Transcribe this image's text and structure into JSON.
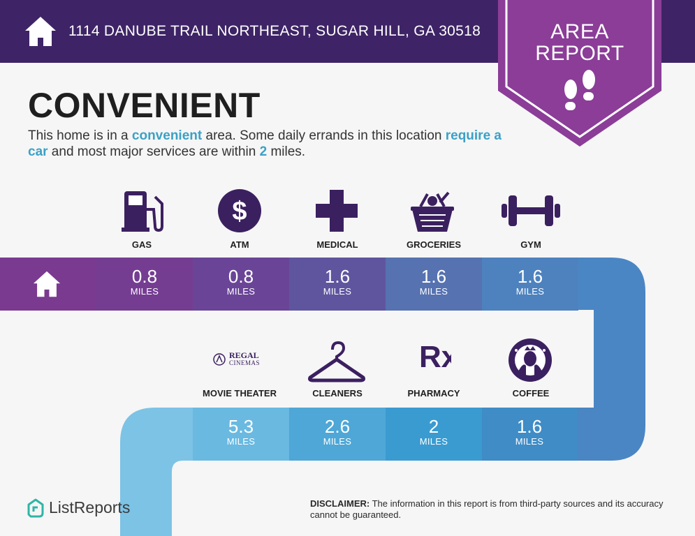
{
  "header": {
    "address": "1114 DANUBE TRAIL NORTHEAST, SUGAR HILL, GA 30518",
    "home_icon": "home-icon"
  },
  "badge": {
    "line1": "AREA",
    "line2": "REPORT",
    "icon": "footprints-icon"
  },
  "title": "CONVENIENT",
  "description": {
    "p1": "This home is in a ",
    "hl1": "convenient",
    "p2": " area. Some daily errands in this location ",
    "hl2": "require a car",
    "p3": " and most major services are within ",
    "hl3": "2",
    "p4": " miles."
  },
  "row1": [
    {
      "label": "GAS",
      "value": "0.8",
      "unit": "MILES",
      "icon": "gas-pump-icon"
    },
    {
      "label": "ATM",
      "value": "0.8",
      "unit": "MILES",
      "icon": "dollar-icon"
    },
    {
      "label": "MEDICAL",
      "value": "1.6",
      "unit": "MILES",
      "icon": "medical-cross-icon"
    },
    {
      "label": "GROCERIES",
      "value": "1.6",
      "unit": "MILES",
      "icon": "grocery-basket-icon"
    },
    {
      "label": "GYM",
      "value": "1.6",
      "unit": "MILES",
      "icon": "dumbbell-icon"
    }
  ],
  "row2": [
    {
      "label": "MOVIE THEATER",
      "value": "5.3",
      "unit": "MILES",
      "icon": "regal-cinemas-logo",
      "logo_line1": "REGAL",
      "logo_line2": "CINEMAS"
    },
    {
      "label": "CLEANERS",
      "value": "2.6",
      "unit": "MILES",
      "icon": "hanger-icon"
    },
    {
      "label": "PHARMACY",
      "value": "2",
      "unit": "MILES",
      "icon": "rx-icon",
      "glyph": "Rx"
    },
    {
      "label": "COFFEE",
      "value": "1.6",
      "unit": "MILES",
      "icon": "starbucks-logo"
    }
  ],
  "footer": {
    "brand": "ListReports",
    "disclaimer_label": "DISCLAIMER:",
    "disclaimer_text": " The information in this report is from third-party sources and its accuracy cannot be guaranteed."
  },
  "colors": {
    "header_bg": "#3e2466",
    "badge": "#8b3d98",
    "accent": "#3ba1c6",
    "row1": [
      "#7a3a90",
      "#743d92",
      "#6a4597",
      "#5f559e",
      "#5672b0",
      "#4d82bf"
    ],
    "row2": [
      "#7cc3e6",
      "#6ab9e1",
      "#4ea7d6",
      "#3a9bd1",
      "#3f8cc6",
      "#4386c1"
    ]
  }
}
